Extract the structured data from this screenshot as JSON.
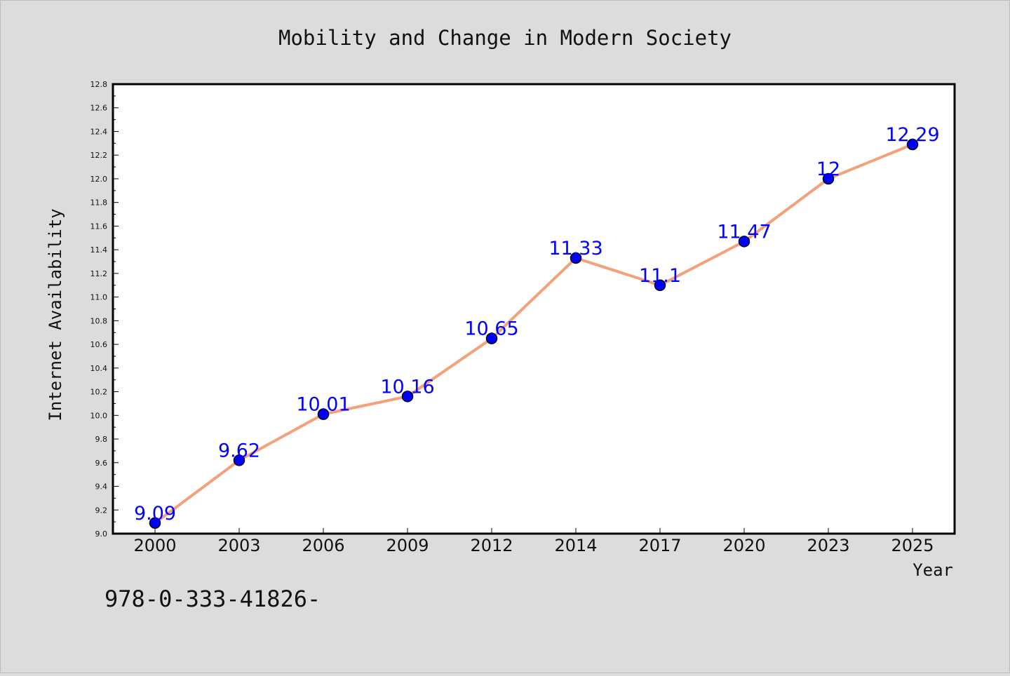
{
  "chart_data": {
    "type": "line",
    "title": "Mobility and Change in Modern Society",
    "xlabel": "Year",
    "ylabel": "Internet Availability",
    "categories": [
      "2000",
      "2003",
      "2006",
      "2009",
      "2012",
      "2014",
      "2017",
      "2020",
      "2023",
      "2025"
    ],
    "series": [
      {
        "values": [
          9.09,
          9.62,
          10.01,
          10.16,
          10.65,
          11.33,
          11.1,
          11.47,
          12,
          12.29
        ]
      }
    ],
    "data_labels": [
      "9.09",
      "9.62",
      "10.01",
      "10.16",
      "10.65",
      "11.33",
      "11.1",
      "11.47",
      "12",
      "12.29"
    ],
    "ylim": [
      9.0,
      12.8
    ],
    "yticks": [
      "9.0",
      "9.2",
      "9.4",
      "9.6",
      "9.8",
      "10.0",
      "10.2",
      "10.4",
      "10.6",
      "10.8",
      "11.0",
      "11.2",
      "11.4",
      "11.6",
      "11.8",
      "12.0",
      "12.2",
      "12.4",
      "12.6",
      "12.8"
    ],
    "grid": false,
    "colors": {
      "line": "#f4a07a",
      "marker": "#0000ff",
      "label": "#0000ff",
      "background": "#dcdcdc",
      "plot_background": "#ffffff"
    }
  },
  "footnote": "978-0-333-41826-"
}
